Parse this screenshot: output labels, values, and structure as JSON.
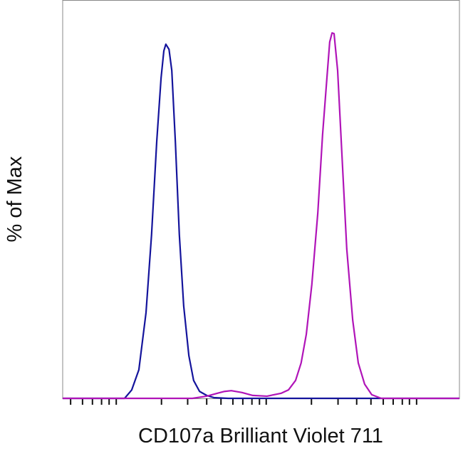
{
  "chart_data": {
    "type": "line",
    "y_label": "% of Max",
    "x_label": "CD107a Brilliant Violet 711",
    "xlim": [
      0,
      100
    ],
    "ylim": [
      0,
      109
    ],
    "xticks": [
      2.0,
      5.0,
      7.5,
      9.8,
      11.7,
      13.5,
      24.9,
      31.5,
      36.3,
      39.9,
      42.9,
      45.4,
      47.7,
      49.6,
      51.3,
      62.7,
      69.4,
      74.1,
      77.7,
      80.8,
      83.3,
      85.6,
      87.4,
      89.2
    ],
    "series": [
      {
        "color": "#14149c",
        "x": [
          0,
          15.6,
          17.4,
          19.2,
          21.0,
          22.4,
          23.7,
          24.8,
          25.5,
          26.0,
          26.8,
          27.5,
          28.4,
          29.4,
          30.5,
          31.8,
          33.0,
          34.5,
          36.3,
          38.1,
          41.7,
          100
        ],
        "values": [
          0,
          0,
          2.3,
          7.8,
          23.4,
          44.8,
          70.2,
          87.7,
          95.1,
          96.9,
          95.5,
          89.7,
          70.2,
          44.8,
          25.3,
          11.7,
          4.9,
          1.9,
          0.8,
          0.2,
          0,
          0
        ]
      },
      {
        "color": "#b014b8",
        "x": [
          0,
          32.7,
          36.3,
          39.0,
          40.8,
          42.5,
          45.2,
          47.9,
          51.5,
          55.1,
          56.9,
          58.7,
          60.1,
          61.4,
          62.8,
          64.3,
          65.5,
          66.6,
          67.3,
          67.9,
          68.4,
          69.3,
          70.4,
          71.6,
          73.1,
          74.5,
          76.1,
          77.9,
          80.3,
          100
        ],
        "values": [
          0,
          0,
          0.6,
          1.4,
          1.9,
          2.1,
          1.6,
          0.8,
          0.6,
          1.4,
          2.3,
          4.9,
          9.7,
          17.5,
          31.2,
          50.7,
          72.1,
          87.7,
          97.5,
          100,
          99.8,
          89.7,
          66.3,
          40.9,
          21.4,
          9.7,
          3.9,
          1.0,
          0,
          0
        ]
      }
    ]
  }
}
